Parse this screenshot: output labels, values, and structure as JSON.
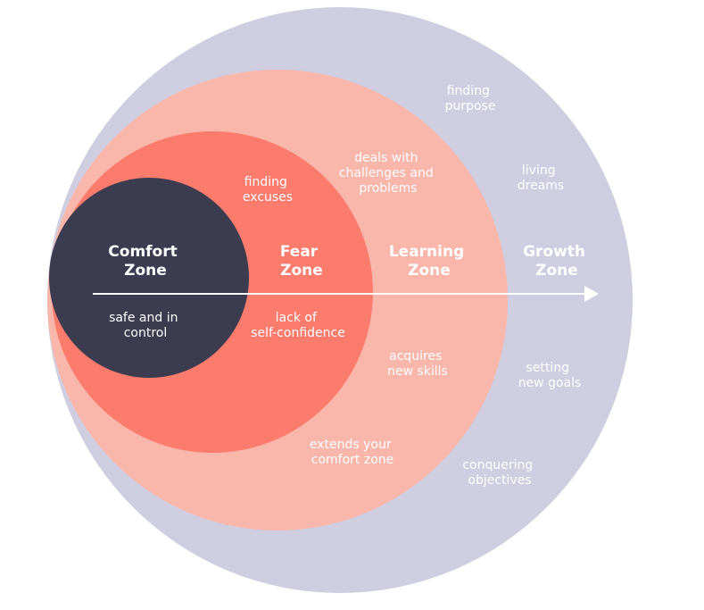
{
  "colors": {
    "growth": "#cfcee0",
    "learning": "#f9b6ab",
    "fear": "#fb7b6d",
    "comfort": "#3c3c50",
    "arrow": "#ffffff",
    "text_light": "#ffffff"
  },
  "zones": {
    "growth": {
      "title": [
        "Growth",
        "Zone"
      ],
      "notes": {
        "finding_purpose": [
          "finding",
          "purpose"
        ],
        "living_dreams": [
          "living",
          "dreams"
        ],
        "setting_new_goals": [
          "setting",
          "new goals"
        ],
        "conquering_objectives": [
          "conquering",
          "objectives"
        ]
      }
    },
    "learning": {
      "title": [
        "Learning",
        "Zone"
      ],
      "notes": {
        "deals_with_challenges": [
          "deals with",
          "challenges and",
          "problems"
        ],
        "acquires_new_skills": [
          "acquires",
          "new skills"
        ],
        "extends_comfort_zone": [
          "extends your",
          "comfort zone"
        ]
      }
    },
    "fear": {
      "title": [
        "Fear",
        "Zone"
      ],
      "notes": {
        "finding_excuses": [
          "finding",
          "excuses"
        ],
        "lack_of_self_confidence": [
          "lack of",
          "self-confidence"
        ]
      }
    },
    "comfort": {
      "title": [
        "Comfort",
        "Zone"
      ],
      "notes": {
        "safe_and_in_control": [
          "safe and in",
          "control"
        ]
      }
    }
  }
}
